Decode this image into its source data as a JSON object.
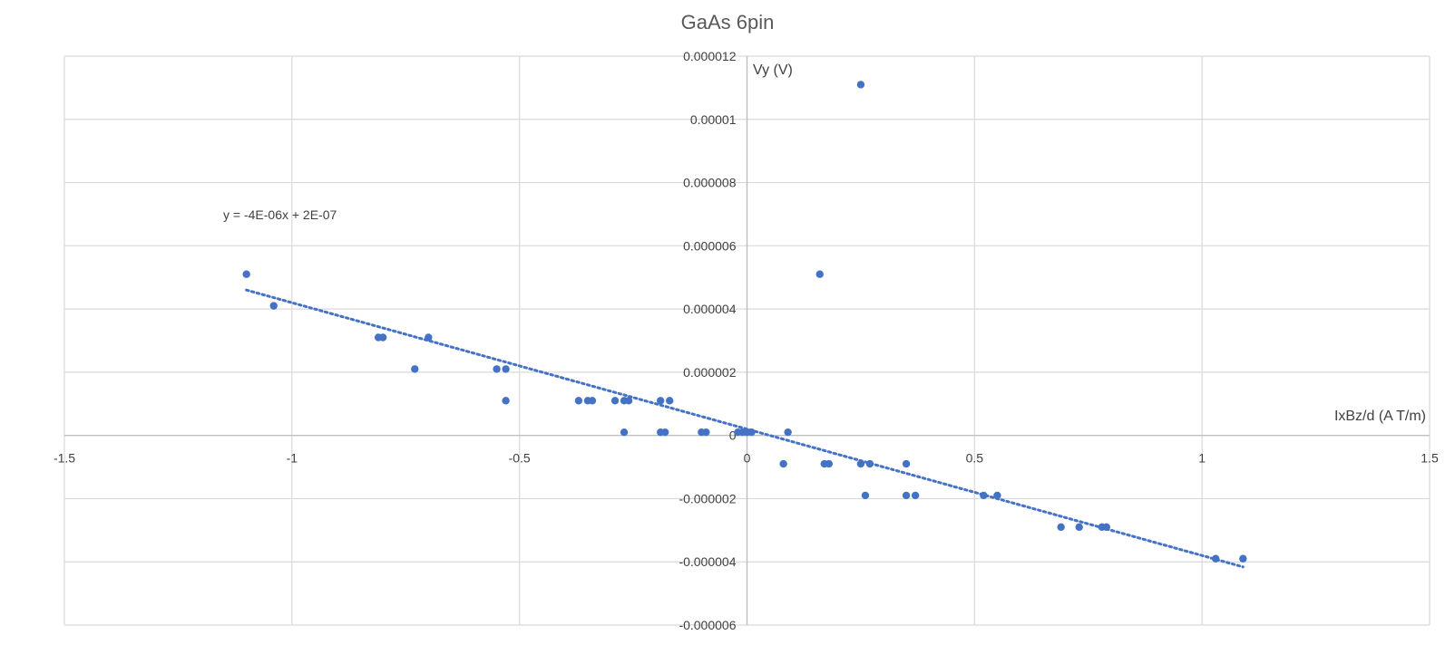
{
  "chart_data": {
    "type": "scatter",
    "title": "GaAs 6pin",
    "xlabel": "IxBz/d (A T/m)",
    "ylabel": "Vy (V)",
    "xlim": [
      -1.5,
      1.5
    ],
    "ylim": [
      -6e-06,
      1.2e-05
    ],
    "x_ticks": [
      -1.5,
      -1,
      -0.5,
      0,
      0.5,
      1,
      1.5
    ],
    "x_tick_labels": [
      "-1.5",
      "-1",
      "-0.5",
      "0",
      "0.5",
      "1",
      "1.5"
    ],
    "y_ticks": [
      -6e-06,
      -4e-06,
      -2e-06,
      0,
      2e-06,
      4e-06,
      6e-06,
      8e-06,
      1e-05,
      1.2e-05
    ],
    "y_tick_labels": [
      "-0.000006",
      "-0.000004",
      "-0.000002",
      "0",
      "0.000002",
      "0.000004",
      "0.000006",
      "0.000008",
      "0.00001",
      "0.000012"
    ],
    "grid": true,
    "legend": "none",
    "marker_color": "#4472C4",
    "trendline": {
      "type": "linear",
      "slope": -4e-06,
      "intercept": 2e-07,
      "x_range": [
        -1.1,
        1.09
      ],
      "equation_label": "y = -4E-06x + 2E-07",
      "style": "dotted",
      "color": "#4472C4"
    },
    "series": [
      {
        "x": [
          -1.1,
          -1.04,
          -0.81,
          -0.8,
          -0.7,
          -0.73,
          -0.55,
          -0.53,
          -0.53,
          -0.37,
          -0.35,
          -0.34,
          -0.29,
          -0.27,
          -0.26,
          -0.27,
          -0.19,
          -0.17,
          -0.19,
          -0.18,
          -0.1,
          -0.09,
          -0.02,
          -0.01,
          0.0,
          0.01,
          0.09,
          0.08,
          0.17,
          0.18,
          0.25,
          0.16,
          0.25,
          0.26,
          0.27,
          0.35,
          0.35,
          0.37,
          0.52,
          0.55,
          0.69,
          0.73,
          0.78,
          0.79,
          1.03,
          1.09
        ],
        "y": [
          5.1e-06,
          4.1e-06,
          3.1e-06,
          3.1e-06,
          3.1e-06,
          2.1e-06,
          2.1e-06,
          2.1e-06,
          1.1e-06,
          1.1e-06,
          1.1e-06,
          1.1e-06,
          1.1e-06,
          1.1e-06,
          1.1e-06,
          1e-07,
          1.1e-06,
          1.1e-06,
          1e-07,
          1e-07,
          1e-07,
          1e-07,
          1e-07,
          1e-07,
          1e-07,
          1e-07,
          1e-07,
          -9e-07,
          -9e-07,
          -9e-07,
          1.11e-05,
          5.1e-06,
          -9e-07,
          -1.9e-06,
          -9e-07,
          -9e-07,
          -1.9e-06,
          -1.9e-06,
          -1.9e-06,
          -1.9e-06,
          -2.9e-06,
          -2.9e-06,
          -2.9e-06,
          -2.9e-06,
          -3.9e-06,
          -3.9e-06
        ]
      }
    ]
  }
}
